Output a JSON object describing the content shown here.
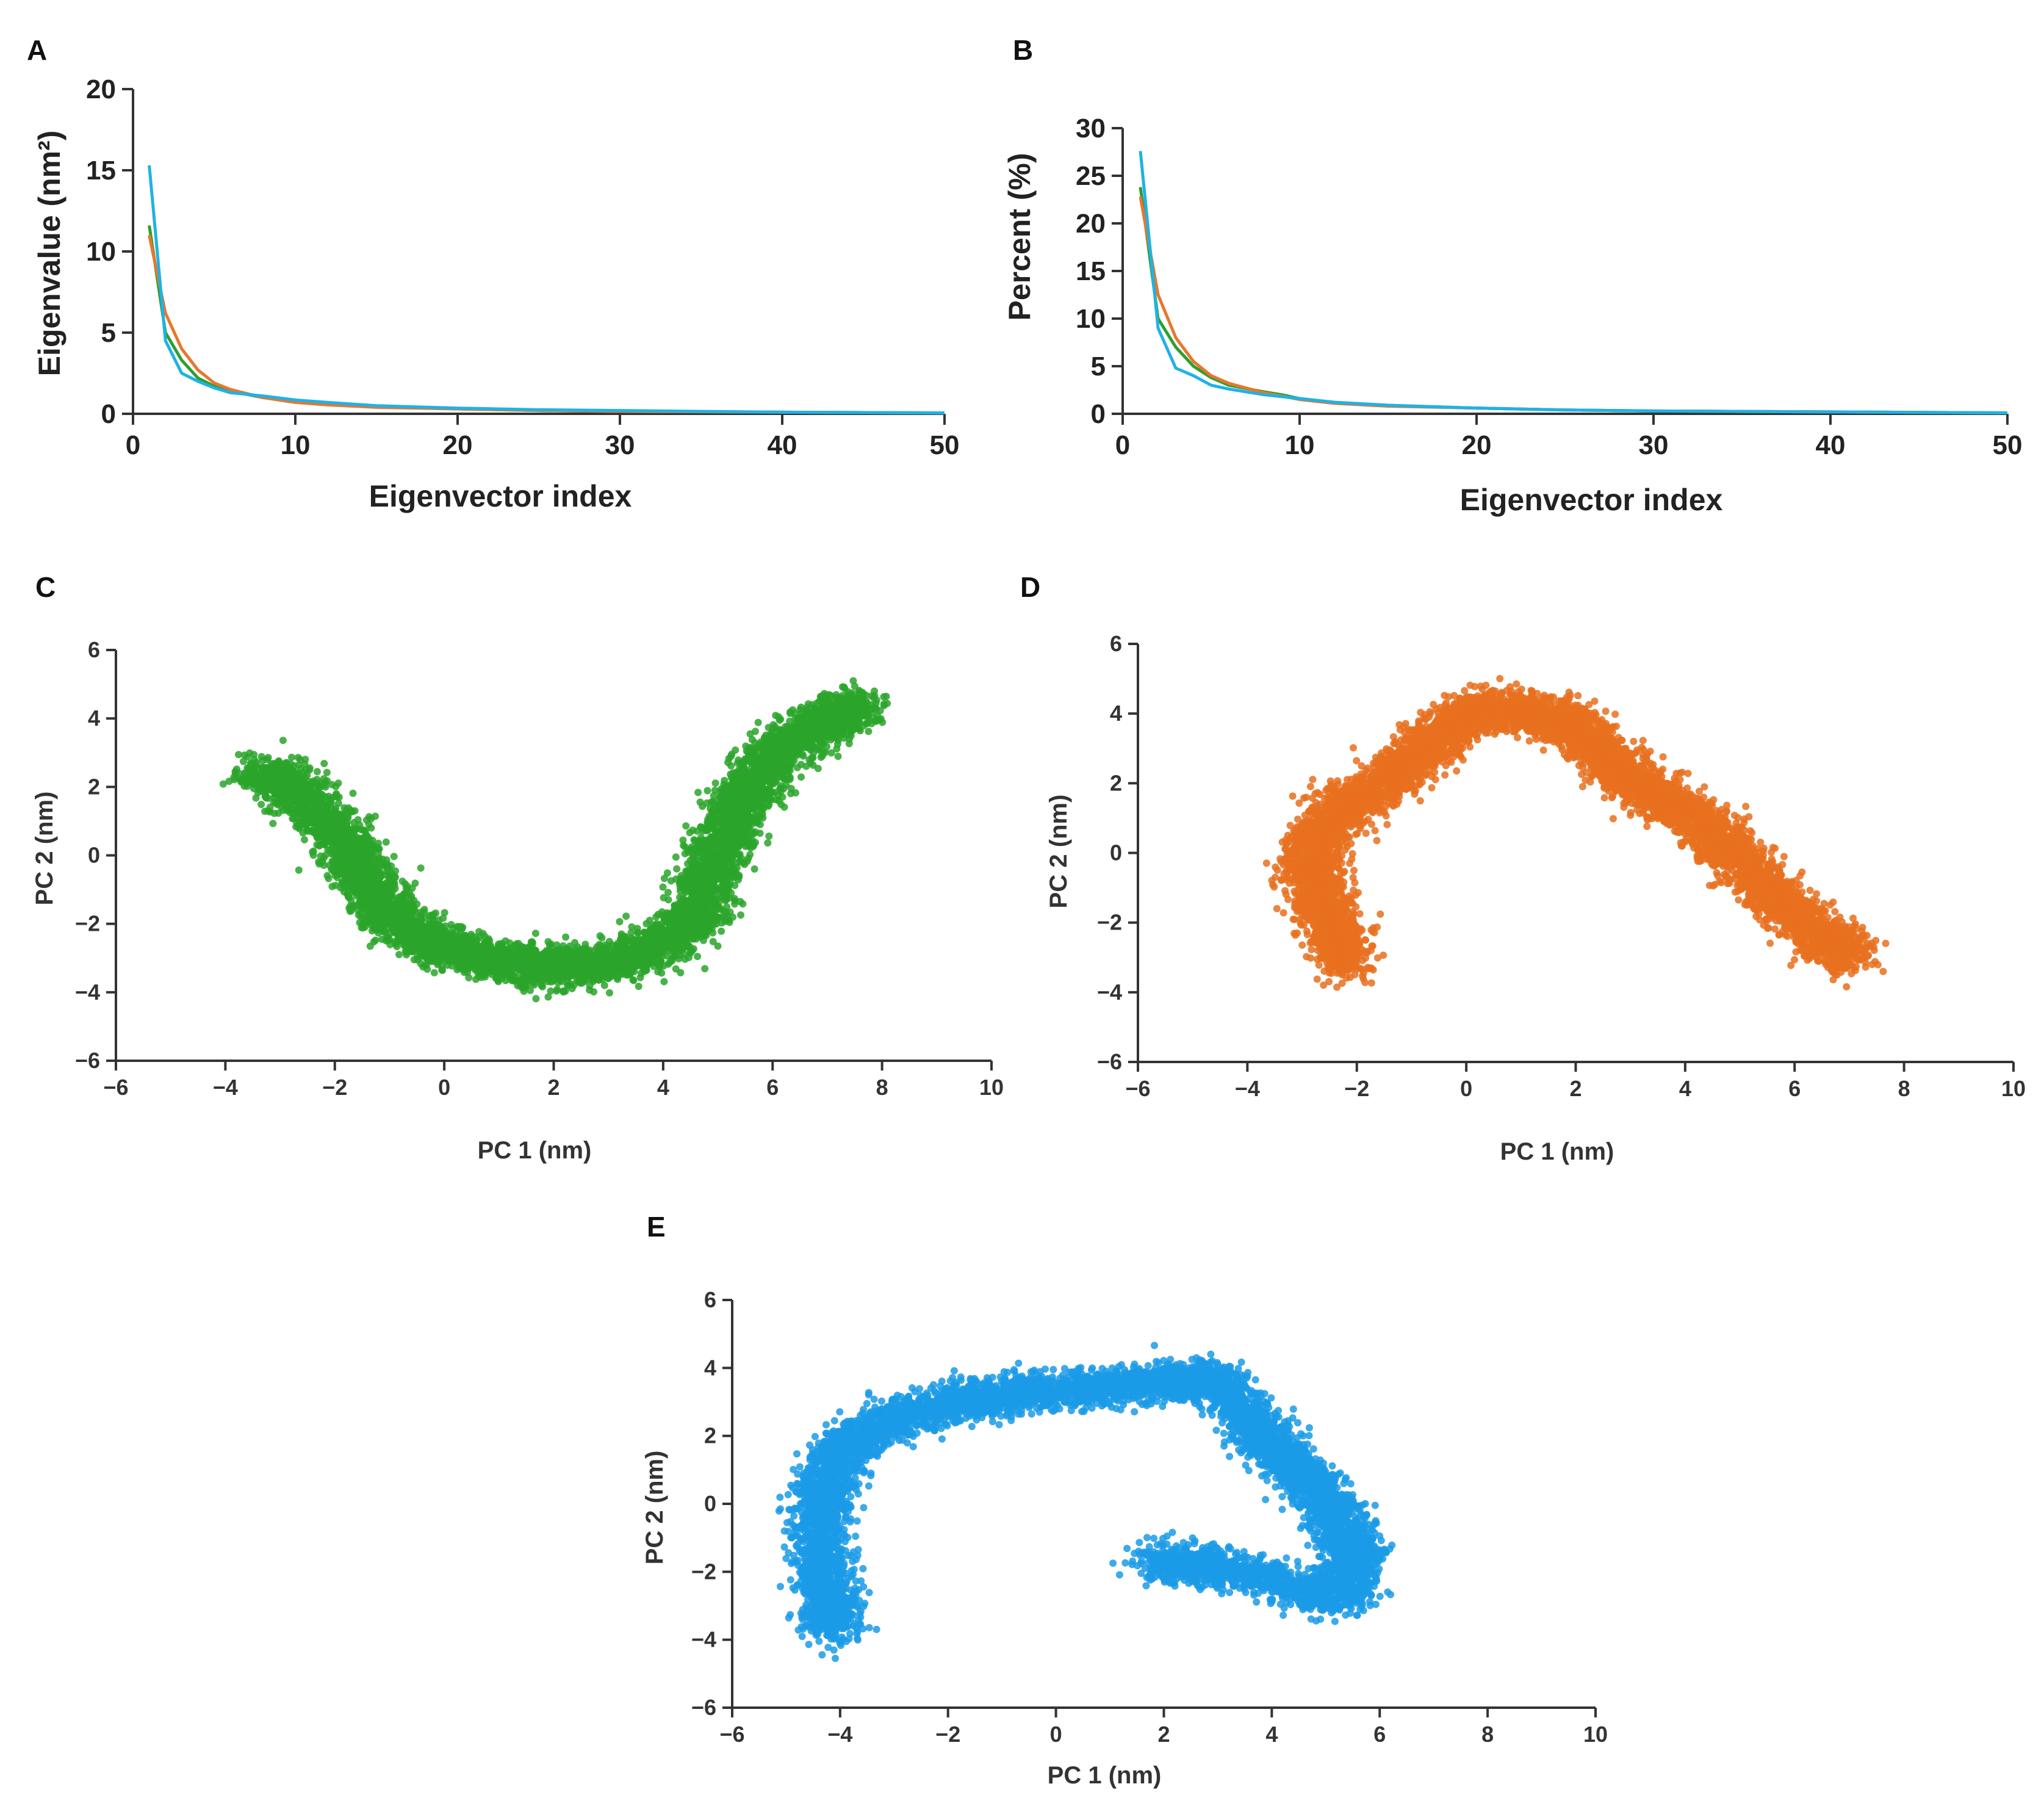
{
  "chart_data": [
    {
      "id": "A",
      "panel_label": "A",
      "type": "line",
      "title": "",
      "xlabel": "Eigenvector index",
      "ylabel": "Eigenvalue (nm²)",
      "xlim": [
        0,
        50
      ],
      "ylim": [
        0,
        20
      ],
      "x_ticks": [
        "0",
        "10",
        "20",
        "30",
        "40",
        "50"
      ],
      "y_ticks": [
        "0",
        "5",
        "10",
        "15",
        "20"
      ],
      "grid": false,
      "legend": "none",
      "series": [
        {
          "name": "green",
          "color": "#2ca02c",
          "x": [
            1,
            2,
            3,
            4,
            5,
            6,
            8,
            10,
            12,
            15,
            20,
            25,
            30,
            40,
            50
          ],
          "y": [
            11.6,
            5.0,
            3.3,
            2.2,
            1.7,
            1.4,
            1.0,
            0.75,
            0.6,
            0.45,
            0.3,
            0.2,
            0.15,
            0.1,
            0.05
          ]
        },
        {
          "name": "orange",
          "color": "#e8762d",
          "x": [
            1,
            2,
            3,
            4,
            5,
            6,
            8,
            10,
            12,
            15,
            20,
            25,
            30,
            40,
            50
          ],
          "y": [
            11.0,
            6.2,
            4.0,
            2.7,
            1.9,
            1.5,
            1.0,
            0.7,
            0.55,
            0.4,
            0.3,
            0.2,
            0.15,
            0.1,
            0.05
          ]
        },
        {
          "name": "blue",
          "color": "#1fb2e6",
          "x": [
            1,
            2,
            3,
            4,
            5,
            6,
            8,
            10,
            12,
            15,
            20,
            25,
            30,
            40,
            50
          ],
          "y": [
            15.3,
            4.5,
            2.5,
            2.0,
            1.6,
            1.3,
            1.1,
            0.85,
            0.7,
            0.5,
            0.35,
            0.25,
            0.2,
            0.1,
            0.05
          ]
        }
      ]
    },
    {
      "id": "B",
      "panel_label": "B",
      "type": "line",
      "title": "",
      "xlabel": "Eigenvector index",
      "ylabel": "Percent (%)",
      "xlim": [
        0,
        50
      ],
      "ylim": [
        0,
        30
      ],
      "x_ticks": [
        "0",
        "10",
        "20",
        "30",
        "40",
        "50"
      ],
      "y_ticks": [
        "0",
        "5",
        "10",
        "15",
        "20",
        "25",
        "30"
      ],
      "grid": false,
      "legend": "none",
      "series": [
        {
          "name": "green",
          "color": "#2ca02c",
          "x": [
            1,
            2,
            3,
            4,
            5,
            6,
            8,
            9,
            10,
            12,
            15,
            20,
            25,
            30,
            40,
            50
          ],
          "y": [
            23.8,
            10.0,
            7.0,
            5.0,
            3.8,
            3.0,
            2.3,
            2.0,
            1.6,
            1.2,
            0.9,
            0.6,
            0.4,
            0.3,
            0.2,
            0.1
          ]
        },
        {
          "name": "orange",
          "color": "#e8762d",
          "x": [
            1,
            2,
            3,
            4,
            5,
            6,
            8,
            10,
            12,
            15,
            20,
            25,
            30,
            40,
            50
          ],
          "y": [
            22.8,
            12.5,
            8.0,
            5.5,
            4.0,
            3.2,
            2.2,
            1.5,
            1.1,
            0.8,
            0.6,
            0.4,
            0.3,
            0.2,
            0.1
          ]
        },
        {
          "name": "blue",
          "color": "#1fb2e6",
          "x": [
            1,
            2,
            3,
            4,
            5,
            6,
            8,
            10,
            12,
            15,
            20,
            25,
            30,
            40,
            50
          ],
          "y": [
            27.6,
            9.0,
            4.8,
            4.0,
            3.0,
            2.6,
            2.0,
            1.6,
            1.2,
            0.9,
            0.6,
            0.4,
            0.3,
            0.2,
            0.1
          ]
        }
      ]
    },
    {
      "id": "C",
      "panel_label": "C",
      "type": "scatter",
      "title": "",
      "xlabel": "PC 1 (nm)",
      "ylabel": "PC 2 (nm)",
      "xlim": [
        -6,
        10
      ],
      "ylim": [
        -6,
        6
      ],
      "x_ticks": [
        "−6",
        "−4",
        "−2",
        "0",
        "2",
        "4",
        "6",
        "8",
        "10"
      ],
      "y_ticks": [
        "−6",
        "−4",
        "−2",
        "0",
        "2",
        "4",
        "6"
      ],
      "grid": false,
      "legend": "none",
      "color": "#2aa52a",
      "path": [
        [
          -3.4,
          2.5
        ],
        [
          -2.6,
          1.8
        ],
        [
          -1.9,
          0.5
        ],
        [
          -1.4,
          -0.8
        ],
        [
          -0.9,
          -1.9
        ],
        [
          -0.2,
          -2.6
        ],
        [
          0.8,
          -3.0
        ],
        [
          1.8,
          -3.3
        ],
        [
          2.8,
          -3.2
        ],
        [
          3.8,
          -2.8
        ],
        [
          4.6,
          -1.8
        ],
        [
          4.9,
          -0.4
        ],
        [
          5.2,
          0.8
        ],
        [
          5.6,
          2.0
        ],
        [
          6.2,
          3.2
        ],
        [
          7.0,
          3.9
        ],
        [
          7.5,
          4.4
        ]
      ],
      "spread": 0.5,
      "points_per_segment": 420
    },
    {
      "id": "D",
      "panel_label": "D",
      "type": "scatter",
      "title": "",
      "xlabel": "PC 1 (nm)",
      "ylabel": "PC 2 (nm)",
      "xlim": [
        -6,
        10
      ],
      "ylim": [
        -6,
        6
      ],
      "x_ticks": [
        "−6",
        "−4",
        "−2",
        "0",
        "2",
        "4",
        "6",
        "8",
        "10"
      ],
      "y_ticks": [
        "−6",
        "−4",
        "−2",
        "0",
        "2",
        "4",
        "6"
      ],
      "grid": false,
      "legend": "none",
      "color": "#e8701e",
      "path": [
        [
          -2.2,
          -3.3
        ],
        [
          -2.5,
          -2.0
        ],
        [
          -2.8,
          -0.8
        ],
        [
          -2.8,
          0.3
        ],
        [
          -2.2,
          1.4
        ],
        [
          -1.3,
          2.2
        ],
        [
          -0.6,
          3.2
        ],
        [
          0.2,
          4.2
        ],
        [
          1.2,
          4.0
        ],
        [
          2.0,
          3.6
        ],
        [
          2.7,
          2.6
        ],
        [
          3.3,
          1.7
        ],
        [
          4.2,
          1.0
        ],
        [
          4.9,
          0.0
        ],
        [
          5.6,
          -1.3
        ],
        [
          6.5,
          -2.4
        ],
        [
          7.0,
          -3.0
        ]
      ],
      "spread": 0.5,
      "points_per_segment": 420
    },
    {
      "id": "E",
      "panel_label": "E",
      "type": "scatter",
      "title": "",
      "xlabel": "PC 1 (nm)",
      "ylabel": "PC 2 (nm)",
      "xlim": [
        -6,
        10
      ],
      "ylim": [
        -6,
        6
      ],
      "x_ticks": [
        "−6",
        "−4",
        "−2",
        "0",
        "2",
        "4",
        "6",
        "8",
        "10"
      ],
      "y_ticks": [
        "−6",
        "−4",
        "−2",
        "0",
        "2",
        "4",
        "6"
      ],
      "grid": false,
      "legend": "none",
      "color": "#1b9be6",
      "path": [
        [
          -4.1,
          -3.8
        ],
        [
          -4.3,
          -2.5
        ],
        [
          -4.4,
          -1.0
        ],
        [
          -4.3,
          0.5
        ],
        [
          -3.9,
          1.7
        ],
        [
          -3.0,
          2.5
        ],
        [
          -1.8,
          3.0
        ],
        [
          -0.6,
          3.3
        ],
        [
          0.8,
          3.4
        ],
        [
          2.0,
          3.6
        ],
        [
          3.0,
          3.6
        ],
        [
          3.6,
          2.4
        ],
        [
          4.2,
          1.4
        ],
        [
          4.8,
          0.5
        ],
        [
          5.3,
          -0.7
        ],
        [
          5.6,
          -1.6
        ],
        [
          5.2,
          -2.8
        ],
        [
          4.0,
          -2.2
        ],
        [
          2.8,
          -1.8
        ],
        [
          1.8,
          -1.7
        ]
      ],
      "spread": 0.5,
      "points_per_segment": 380
    }
  ]
}
